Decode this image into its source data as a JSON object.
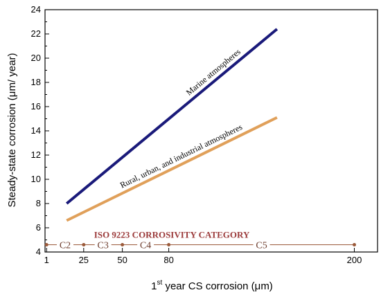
{
  "chart_data": {
    "type": "line",
    "title": "",
    "xlabel_main": "1",
    "xlabel_sup": "st",
    "xlabel_rest": " year CS corrosion (μm)",
    "ylabel": "Steady-state corrosion (μm/ year)",
    "xlim": [
      0,
      215
    ],
    "ylim": [
      4,
      24
    ],
    "x_ticks": [
      1,
      25,
      50,
      80,
      200
    ],
    "y_ticks": [
      4,
      6,
      8,
      10,
      12,
      14,
      16,
      18,
      20,
      22,
      24
    ],
    "grid": false,
    "series": [
      {
        "name": "Marine atmospheres",
        "color": "#1a1a7a",
        "points": [
          [
            14,
            8.0
          ],
          [
            150,
            22.4
          ]
        ]
      },
      {
        "name": "Rural, urban, and industrial atmospheres",
        "color": "#e0a05a",
        "points": [
          [
            14,
            6.6
          ],
          [
            150,
            15.1
          ]
        ]
      }
    ],
    "corrosivity": {
      "title": "ISO 9223 CORROSIVITY CATEGORY",
      "y": 4.6,
      "color": "#9b5a3a",
      "markers": [
        1,
        25,
        50,
        80,
        200
      ],
      "categories": [
        {
          "label": "C2",
          "x": 13
        },
        {
          "label": "C3",
          "x": 37.5
        },
        {
          "label": "C4",
          "x": 65
        },
        {
          "label": "C5",
          "x": 140
        }
      ]
    }
  }
}
